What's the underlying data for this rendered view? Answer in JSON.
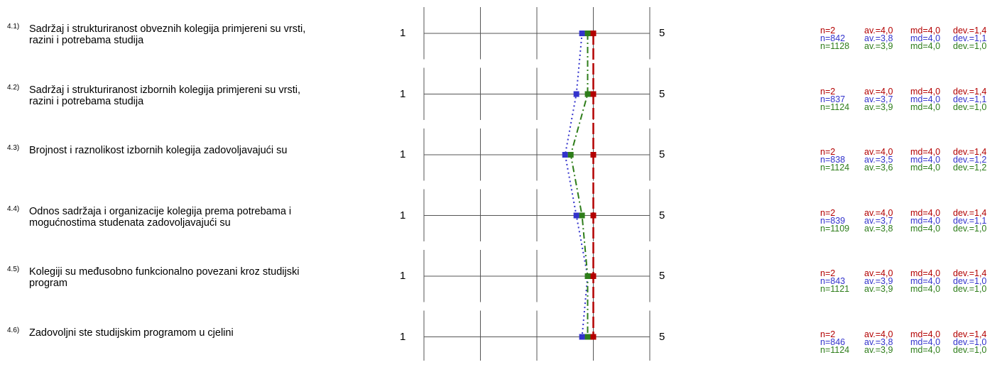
{
  "colors": {
    "red": "#b30000",
    "blue": "#3333cc",
    "green": "#2e7d1a",
    "grid": "#555555"
  },
  "chart_data": {
    "type": "line",
    "xlim": [
      1,
      5
    ],
    "x_min_label": "1",
    "x_max_label": "5",
    "categories": [
      "4.1)",
      "4.2)",
      "4.3)",
      "4.4)",
      "4.5)",
      "4.6)"
    ],
    "series": [
      {
        "color": "red",
        "values": [
          4.0,
          4.0,
          4.0,
          4.0,
          4.0,
          4.0
        ]
      },
      {
        "color": "blue",
        "values": [
          3.8,
          3.7,
          3.5,
          3.7,
          3.9,
          3.8
        ]
      },
      {
        "color": "green",
        "values": [
          3.9,
          3.9,
          3.6,
          3.8,
          3.9,
          3.9
        ]
      }
    ]
  },
  "items": [
    {
      "num": "4.1)",
      "text": "Sadržaj i strukturiranost obveznih kolegija primjereni su vrsti, razini i potrebama studija",
      "stats": [
        {
          "n": "n=2",
          "av": "av.=4,0",
          "md": "md=4,0",
          "dev": "dev.=1,4"
        },
        {
          "n": "n=842",
          "av": "av.=3,8",
          "md": "md=4,0",
          "dev": "dev.=1,1"
        },
        {
          "n": "n=1128",
          "av": "av.=3,9",
          "md": "md=4,0",
          "dev": "dev.=1,0"
        }
      ]
    },
    {
      "num": "4.2)",
      "text": "Sadržaj i strukturiranost izbornih kolegija primjereni su vrsti, razini i potrebama studija",
      "stats": [
        {
          "n": "n=2",
          "av": "av.=4,0",
          "md": "md=4,0",
          "dev": "dev.=1,4"
        },
        {
          "n": "n=837",
          "av": "av.=3,7",
          "md": "md=4,0",
          "dev": "dev.=1,1"
        },
        {
          "n": "n=1124",
          "av": "av.=3,9",
          "md": "md=4,0",
          "dev": "dev.=1,0"
        }
      ]
    },
    {
      "num": "4.3)",
      "text": "Brojnost i raznolikost izbornih kolegija zadovoljavajući su",
      "stats": [
        {
          "n": "n=2",
          "av": "av.=4,0",
          "md": "md=4,0",
          "dev": "dev.=1,4"
        },
        {
          "n": "n=838",
          "av": "av.=3,5",
          "md": "md=4,0",
          "dev": "dev.=1,2"
        },
        {
          "n": "n=1124",
          "av": "av.=3,6",
          "md": "md=4,0",
          "dev": "dev.=1,2"
        }
      ]
    },
    {
      "num": "4.4)",
      "text": "Odnos sadržaja i organizacije kolegija prema potrebama i mogućnostima studenata zadovoljavajući su",
      "stats": [
        {
          "n": "n=2",
          "av": "av.=4,0",
          "md": "md=4,0",
          "dev": "dev.=1,4"
        },
        {
          "n": "n=839",
          "av": "av.=3,7",
          "md": "md=4,0",
          "dev": "dev.=1,1"
        },
        {
          "n": "n=1109",
          "av": "av.=3,8",
          "md": "md=4,0",
          "dev": "dev.=1,0"
        }
      ]
    },
    {
      "num": "4.5)",
      "text": "Kolegiji su međusobno funkcionalno povezani kroz studijski program",
      "stats": [
        {
          "n": "n=2",
          "av": "av.=4,0",
          "md": "md=4,0",
          "dev": "dev.=1,4"
        },
        {
          "n": "n=843",
          "av": "av.=3,9",
          "md": "md=4,0",
          "dev": "dev.=1,0"
        },
        {
          "n": "n=1121",
          "av": "av.=3,9",
          "md": "md=4,0",
          "dev": "dev.=1,0"
        }
      ]
    },
    {
      "num": "4.6)",
      "text": "Zadovoljni ste studijskim programom u cjelini",
      "stats": [
        {
          "n": "n=2",
          "av": "av.=4,0",
          "md": "md=4,0",
          "dev": "dev.=1,4"
        },
        {
          "n": "n=846",
          "av": "av.=3,8",
          "md": "md=4,0",
          "dev": "dev.=1,0"
        },
        {
          "n": "n=1124",
          "av": "av.=3,9",
          "md": "md=4,0",
          "dev": "dev.=1,0"
        }
      ]
    }
  ]
}
